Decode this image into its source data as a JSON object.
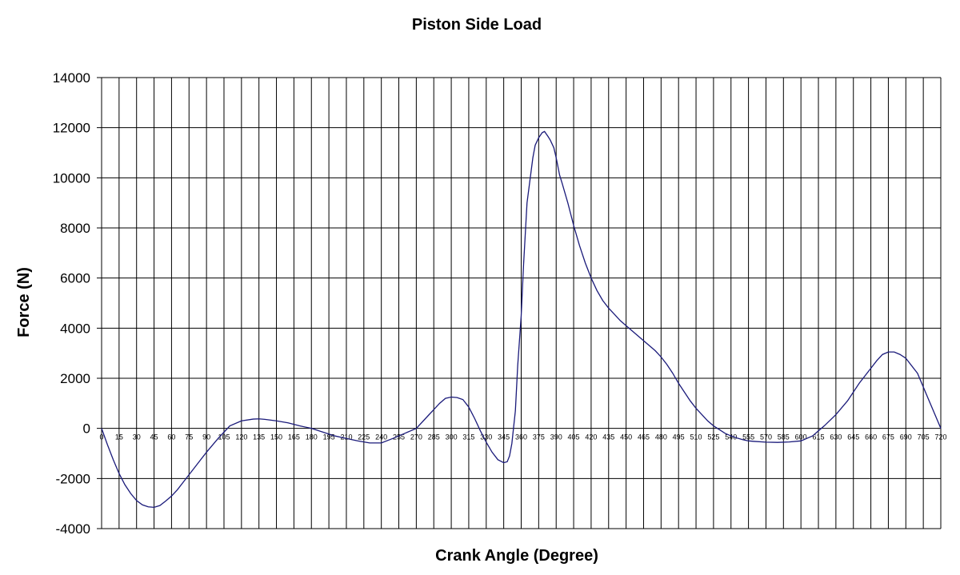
{
  "chart_data": {
    "type": "line",
    "title": "Piston Side Load",
    "xlabel": "Crank Angle (Degree)",
    "ylabel": "Force (N)",
    "xlim": [
      0,
      720
    ],
    "ylim": [
      -4000,
      14000
    ],
    "y_ticks": [
      14000,
      12000,
      10000,
      8000,
      6000,
      4000,
      2000,
      0,
      -2000,
      -4000
    ],
    "y_tick_labels": [
      "14000",
      "12000",
      "10000",
      "8000",
      "6000",
      "4000",
      "2000",
      "0",
      "-2000",
      "-4000"
    ],
    "x_ticks": [
      0,
      15,
      30,
      45,
      60,
      75,
      90,
      105,
      120,
      135,
      150,
      165,
      180,
      195,
      210,
      225,
      240,
      255,
      270,
      285,
      300,
      315,
      330,
      345,
      360,
      375,
      390,
      405,
      420,
      435,
      450,
      465,
      480,
      495,
      510,
      525,
      540,
      555,
      570,
      585,
      600,
      615,
      630,
      645,
      660,
      675,
      690,
      705,
      720
    ],
    "x_tick_labels": [
      "0",
      "15",
      "30",
      "45",
      "60",
      "75",
      "90",
      "105",
      "120",
      "135",
      "150",
      "165",
      "180",
      "195",
      "210",
      "225",
      "240",
      "255",
      "270",
      "285",
      "300",
      "315",
      "330",
      "345",
      "360",
      "375",
      "390",
      "405",
      "420",
      "435",
      "450",
      "465",
      "480",
      "495",
      "510",
      "525",
      "540",
      "555",
      "570",
      "585",
      "600",
      "615",
      "630",
      "645",
      "660",
      "675",
      "690",
      "705",
      "720"
    ],
    "grid": true,
    "legend": false,
    "line_color": "#1a1a7a",
    "series": [
      {
        "x": [
          0,
          5,
          10,
          15,
          20,
          25,
          30,
          35,
          40,
          45,
          50,
          55,
          60,
          65,
          70,
          75,
          80,
          90,
          100,
          105,
          110,
          120,
          130,
          135,
          140,
          150,
          160,
          170,
          180,
          190,
          200,
          210,
          220,
          230,
          240,
          250,
          255,
          260,
          265,
          270,
          280,
          285,
          290,
          295,
          300,
          305,
          310,
          315,
          320,
          325,
          330,
          335,
          340,
          345,
          348,
          350,
          352,
          355,
          357,
          360,
          362,
          365,
          370,
          372,
          375,
          378,
          380,
          383,
          385,
          388,
          390,
          393,
          395,
          400,
          405,
          410,
          415,
          420,
          425,
          430,
          435,
          440,
          445,
          450,
          455,
          460,
          465,
          470,
          475,
          480,
          485,
          490,
          495,
          500,
          505,
          510,
          515,
          520,
          525,
          530,
          535,
          540,
          545,
          550,
          555,
          560,
          570,
          580,
          590,
          600,
          610,
          615,
          620,
          630,
          640,
          650,
          660,
          665,
          670,
          675,
          680,
          685,
          690,
          700,
          710,
          720
        ],
        "y": [
          0,
          -650,
          -1250,
          -1800,
          -2250,
          -2600,
          -2880,
          -3050,
          -3130,
          -3150,
          -3080,
          -2900,
          -2700,
          -2450,
          -2150,
          -1850,
          -1550,
          -950,
          -400,
          -150,
          100,
          300,
          370,
          380,
          360,
          300,
          220,
          100,
          0,
          -150,
          -300,
          -400,
          -500,
          -580,
          -580,
          -400,
          -300,
          -200,
          -100,
          0,
          500,
          750,
          1000,
          1200,
          1250,
          1230,
          1150,
          850,
          400,
          -100,
          -550,
          -950,
          -1250,
          -1370,
          -1330,
          -1100,
          -600,
          700,
          2500,
          4500,
          6500,
          9000,
          10800,
          11300,
          11600,
          11800,
          11850,
          11650,
          11500,
          11200,
          10800,
          10100,
          9800,
          9000,
          8100,
          7300,
          6600,
          6000,
          5500,
          5100,
          4800,
          4550,
          4300,
          4100,
          3900,
          3700,
          3500,
          3300,
          3100,
          2850,
          2550,
          2200,
          1800,
          1450,
          1100,
          800,
          550,
          300,
          100,
          -50,
          -200,
          -300,
          -380,
          -450,
          -500,
          -520,
          -550,
          -560,
          -540,
          -500,
          -300,
          -100,
          100,
          550,
          1100,
          1800,
          2400,
          2700,
          2950,
          3050,
          3050,
          2950,
          2800,
          2200,
          1100,
          0
        ]
      }
    ]
  }
}
